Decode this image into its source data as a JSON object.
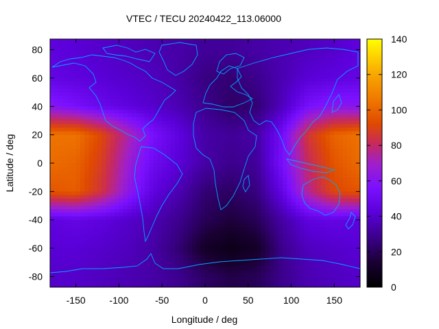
{
  "chart_data": {
    "type": "heatmap",
    "title": "VTEC / TECU 20240422_113.06000",
    "xlabel": "Longitude / deg",
    "ylabel": "Latitude / deg",
    "xlim": [
      -180,
      180
    ],
    "ylim": [
      -87.5,
      87.5
    ],
    "x_ticks": [
      -150,
      -100,
      -50,
      0,
      50,
      100,
      150
    ],
    "y_ticks": [
      -80,
      -60,
      -40,
      -20,
      0,
      20,
      40,
      60,
      80
    ],
    "colorbar": {
      "range": [
        0,
        140
      ],
      "ticks": [
        0,
        20,
        40,
        60,
        80,
        100,
        120,
        140
      ],
      "colormap": [
        "#000000",
        "#1a0033",
        "#3b008a",
        "#5a00d8",
        "#7a10ff",
        "#a020c8",
        "#c82a5a",
        "#e04a00",
        "#f07a00",
        "#f8a800",
        "#ffd800",
        "#ffff00"
      ]
    },
    "coastline_color": "#00a8ff",
    "field_description_points": {
      "lon": [
        -180,
        -150,
        -120,
        -90,
        -60,
        -30,
        0,
        30,
        60,
        90,
        120,
        150,
        180
      ],
      "lat": [
        80,
        60,
        40,
        20,
        0,
        -20,
        -40,
        -60,
        -80
      ],
      "vtec": [
        [
          40,
          38,
          36,
          34,
          32,
          30,
          28,
          28,
          30,
          32,
          34,
          36,
          40
        ],
        [
          42,
          40,
          38,
          36,
          34,
          30,
          24,
          22,
          26,
          32,
          38,
          40,
          42
        ],
        [
          55,
          50,
          44,
          40,
          36,
          32,
          26,
          20,
          22,
          34,
          50,
          56,
          55
        ],
        [
          100,
          100,
          88,
          68,
          50,
          40,
          30,
          28,
          30,
          48,
          82,
          96,
          100
        ],
        [
          98,
          96,
          84,
          62,
          46,
          38,
          30,
          26,
          28,
          50,
          76,
          92,
          98
        ],
        [
          92,
          94,
          80,
          58,
          40,
          32,
          22,
          20,
          24,
          42,
          70,
          88,
          92
        ],
        [
          40,
          42,
          40,
          36,
          32,
          26,
          18,
          14,
          18,
          30,
          40,
          42,
          40
        ],
        [
          38,
          38,
          36,
          34,
          30,
          22,
          10,
          6,
          10,
          26,
          34,
          36,
          38
        ],
        [
          36,
          36,
          34,
          32,
          30,
          26,
          20,
          16,
          18,
          26,
          32,
          34,
          36
        ]
      ]
    }
  }
}
